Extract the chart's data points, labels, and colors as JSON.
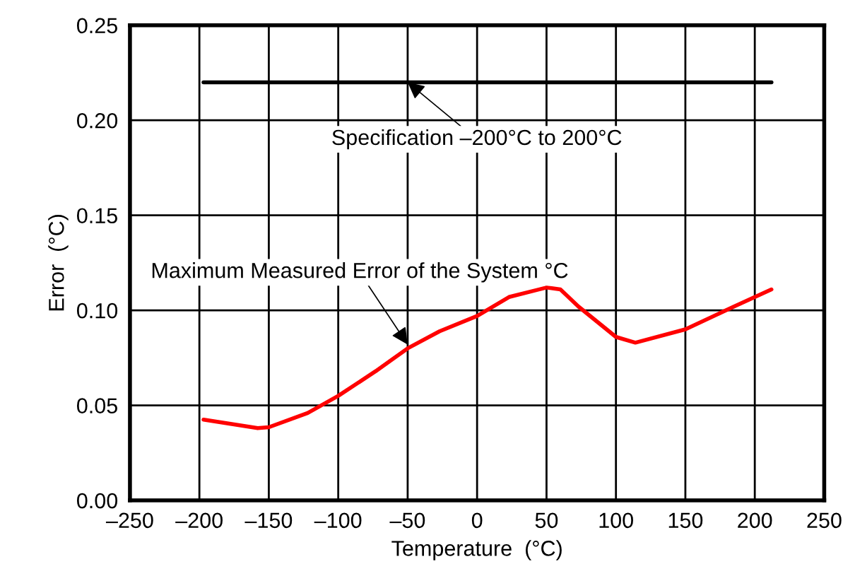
{
  "chart_data": {
    "type": "line",
    "xlabel": "Temperature  (°C)",
    "ylabel": "Error  (°C)",
    "xlim": [
      -250,
      250
    ],
    "xticks": [
      {
        "value": -250,
        "label": "–250"
      },
      {
        "value": -200,
        "label": "–200"
      },
      {
        "value": -150,
        "label": "–150"
      },
      {
        "value": -100,
        "label": "–100"
      },
      {
        "value": -50,
        "label": "–50"
      },
      0,
      50,
      100,
      150,
      200,
      250
    ],
    "ylim": [
      0,
      0.25
    ],
    "yticks": [
      {
        "value": 0,
        "label": "0.00"
      },
      {
        "value": 0.05,
        "label": "0.05"
      },
      {
        "value": 0.1,
        "label": "0.10"
      },
      {
        "value": 0.15,
        "label": "0.15"
      },
      {
        "value": 0.2,
        "label": "0.20"
      },
      {
        "value": 0.25,
        "label": "0.25"
      }
    ],
    "grid": true,
    "legend": false,
    "line_style": "solid",
    "marker": "none",
    "series": [
      {
        "color": "#000000",
        "x": [
          -197,
          212
        ],
        "values": [
          0.22,
          0.22
        ]
      },
      {
        "color": "#ff0000",
        "x": [
          -197,
          -158,
          -150,
          -122,
          -100,
          -73,
          -50,
          -27,
          0,
          23,
          50,
          60,
          73,
          100,
          114,
          150,
          185,
          212
        ],
        "values": [
          0.0425,
          0.038,
          0.0385,
          0.046,
          0.055,
          0.068,
          0.08,
          0.089,
          0.097,
          0.107,
          0.112,
          0.111,
          0.102,
          0.086,
          0.083,
          0.09,
          0.102,
          0.111
        ]
      }
    ],
    "annotations": [
      {
        "text": "Specification –200°C to 200°C",
        "x": -50,
        "y": 0.22
      },
      {
        "text": "Maximum Measured Error of the System °C",
        "x": -50,
        "y": 0.082
      }
    ]
  }
}
